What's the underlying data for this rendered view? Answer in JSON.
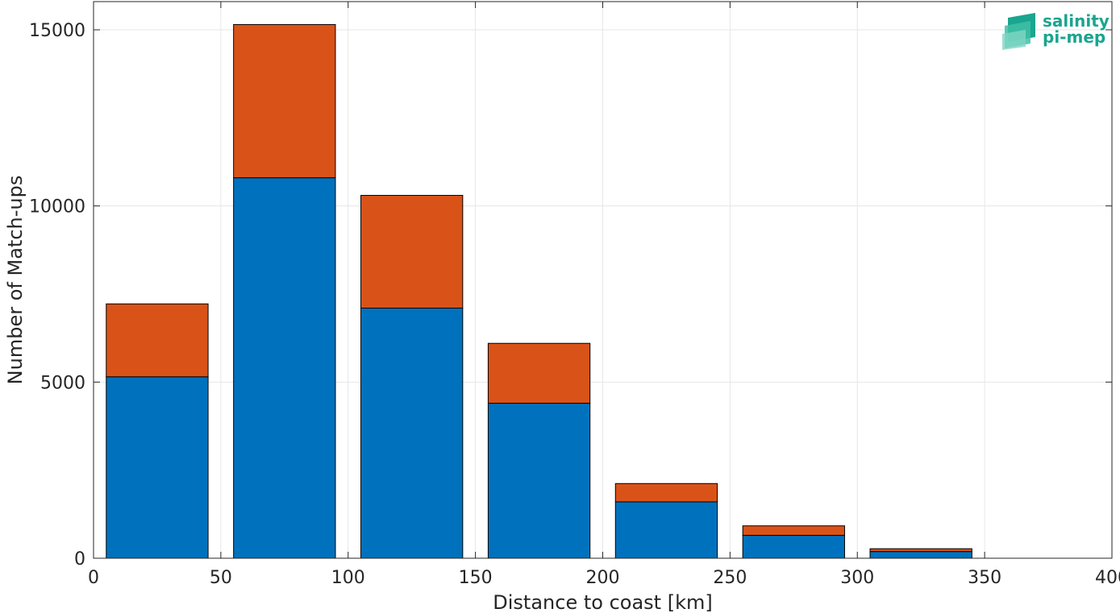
{
  "chart_data": {
    "type": "bar",
    "stacked": true,
    "xlabel": "Distance to coast [km]",
    "ylabel": "Number of Match-ups",
    "xlim": [
      0,
      400
    ],
    "ylim": [
      0,
      15800
    ],
    "xticks": [
      0,
      50,
      100,
      150,
      200,
      250,
      300,
      350,
      400
    ],
    "yticks": [
      0,
      5000,
      10000,
      15000
    ],
    "grid": true,
    "bin_width": 40,
    "x": [
      25,
      75,
      125,
      175,
      225,
      275,
      325
    ],
    "series": [
      {
        "color": "#0072bd",
        "values": [
          5150,
          10800,
          7100,
          4400,
          1600,
          650,
          190
        ]
      },
      {
        "color": "#d95319",
        "values": [
          2070,
          4350,
          3200,
          1700,
          520,
          270,
          80
        ]
      }
    ]
  },
  "logo": {
    "line1": "salinity",
    "line2": "pi-mep",
    "color": "#1aa58f"
  }
}
